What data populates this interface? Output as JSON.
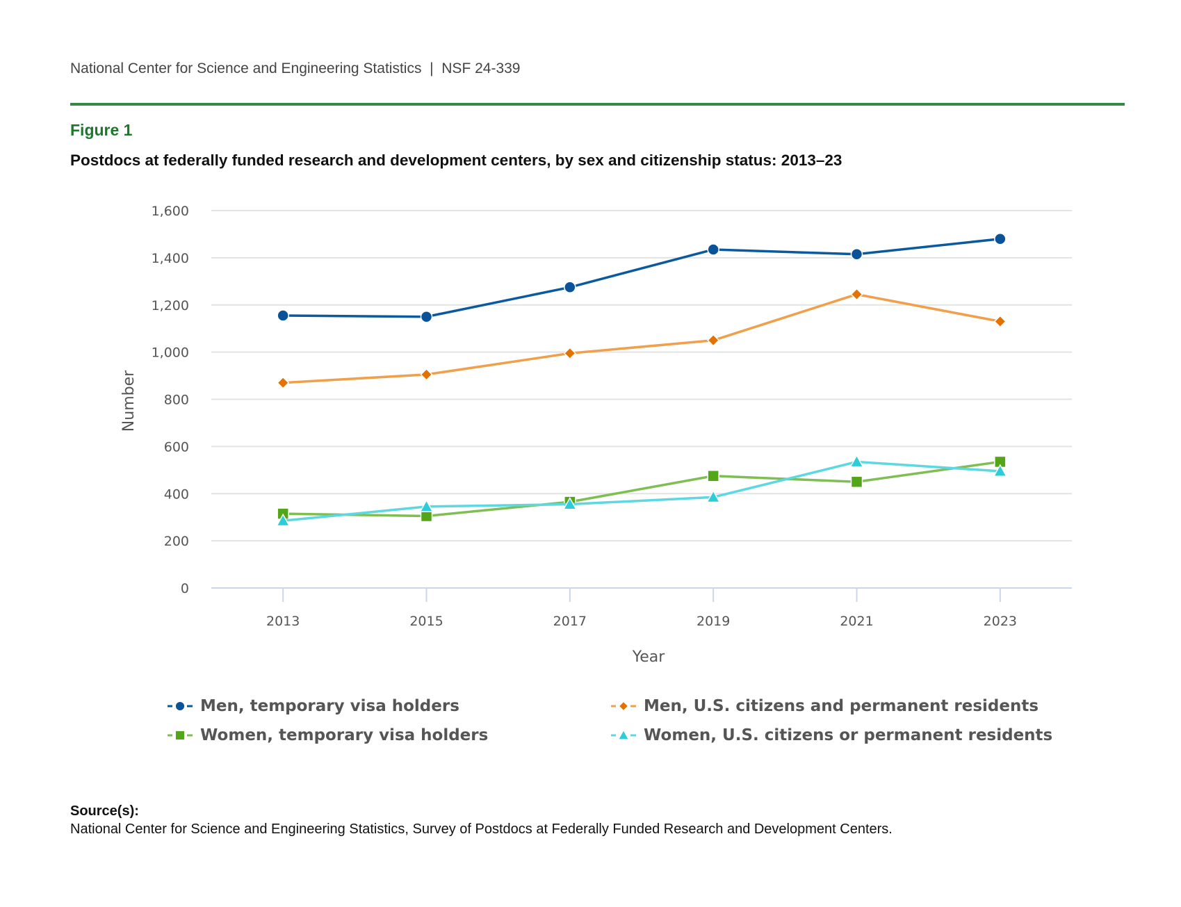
{
  "header": {
    "org": "National Center for Science and Engineering Statistics",
    "separator": "|",
    "report_id": "NSF 24-339"
  },
  "figure": {
    "label": "Figure 1",
    "title": "Postdocs at federally funded research and development centers, by sex and citizenship status: 2013–23"
  },
  "colors": {
    "rule": "#348a44",
    "figure_label": "#1a7a2c"
  },
  "chart_data": {
    "type": "line",
    "title": "Postdocs at federally funded research and development centers, by sex and citizenship status: 2013–23",
    "xlabel": "Year",
    "ylabel": "Number",
    "x": [
      2013,
      2015,
      2017,
      2019,
      2021,
      2023
    ],
    "xlim": [
      2012,
      2024
    ],
    "ylim": [
      0,
      1600
    ],
    "yticks": [
      0,
      200,
      400,
      600,
      800,
      1000,
      1200,
      1400,
      1600
    ],
    "ytick_labels": [
      "0",
      "200",
      "400",
      "600",
      "800",
      "1,000",
      "1,200",
      "1,400",
      "1,600"
    ],
    "xtick_labels": [
      "2013",
      "2015",
      "2017",
      "2019",
      "2021",
      "2023"
    ],
    "grid": true,
    "legend_position": "bottom",
    "series": [
      {
        "name": "Men, temporary visa holders",
        "marker": "circle",
        "line_color": "#0b5a9e",
        "marker_color": "#0a5399",
        "values": [
          1155,
          1150,
          1275,
          1435,
          1415,
          1480
        ]
      },
      {
        "name": "Men, U.S. citizens and permanent residents",
        "marker": "diamond",
        "line_color": "#f0a04a",
        "marker_color": "#e37200",
        "values": [
          870,
          905,
          995,
          1050,
          1245,
          1130
        ]
      },
      {
        "name": "Women, temporary visa holders",
        "marker": "square",
        "line_color": "#7fbe52",
        "marker_color": "#52a617",
        "values": [
          315,
          305,
          365,
          475,
          450,
          535
        ]
      },
      {
        "name": "Women, U.S. citizens or permanent residents",
        "marker": "triangle",
        "line_color": "#5cd8e0",
        "marker_color": "#2cccd9",
        "values": [
          285,
          345,
          355,
          385,
          535,
          495
        ]
      }
    ]
  },
  "source": {
    "label": "Source(s):",
    "text": "National Center for Science and Engineering Statistics, Survey of Postdocs at Federally Funded Research and Development Centers."
  }
}
